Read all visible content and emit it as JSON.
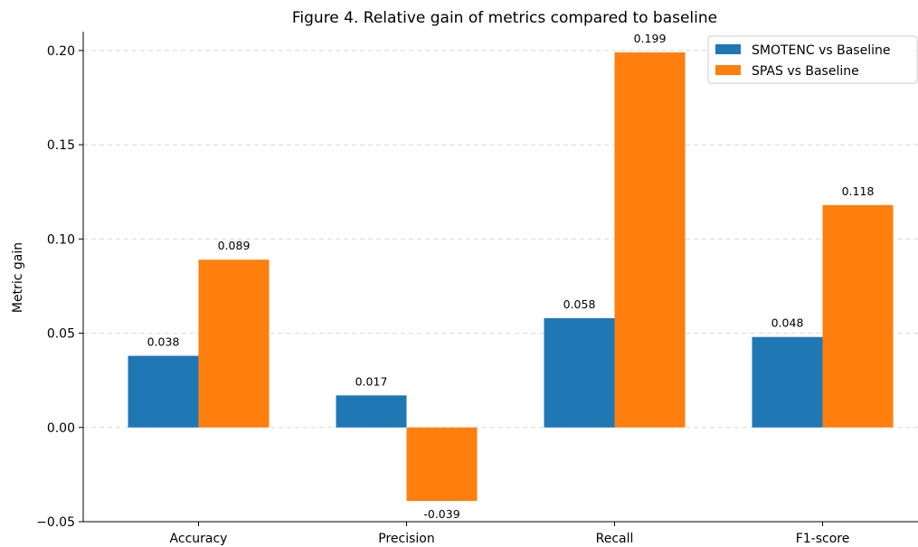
{
  "chart_data": {
    "type": "bar",
    "title": "Figure 4. Relative gain of metrics compared to baseline",
    "xlabel": "",
    "ylabel": "Metric gain",
    "categories": [
      "Accuracy",
      "Precision",
      "Recall",
      "F1-score"
    ],
    "series": [
      {
        "name": "SMOTENC vs Baseline",
        "color": "#1f77b4",
        "values": [
          0.038,
          0.017,
          0.058,
          0.048
        ],
        "labels": [
          "0.038",
          "0.017",
          "0.058",
          "0.048"
        ]
      },
      {
        "name": "SPAS vs Baseline",
        "color": "#ff7f0e",
        "values": [
          0.089,
          -0.039,
          0.199,
          0.118
        ],
        "labels": [
          "0.089",
          "-0.039",
          "0.199",
          "0.118"
        ]
      }
    ],
    "ylim": [
      -0.05,
      0.21
    ],
    "yticks": [
      -0.05,
      0.0,
      0.05,
      0.1,
      0.15,
      0.2
    ],
    "ytick_labels": [
      "−0.05",
      "0.00",
      "0.05",
      "0.10",
      "0.15",
      "0.20"
    ],
    "grid": "horizontal dashed",
    "legend_position": "top-right"
  }
}
